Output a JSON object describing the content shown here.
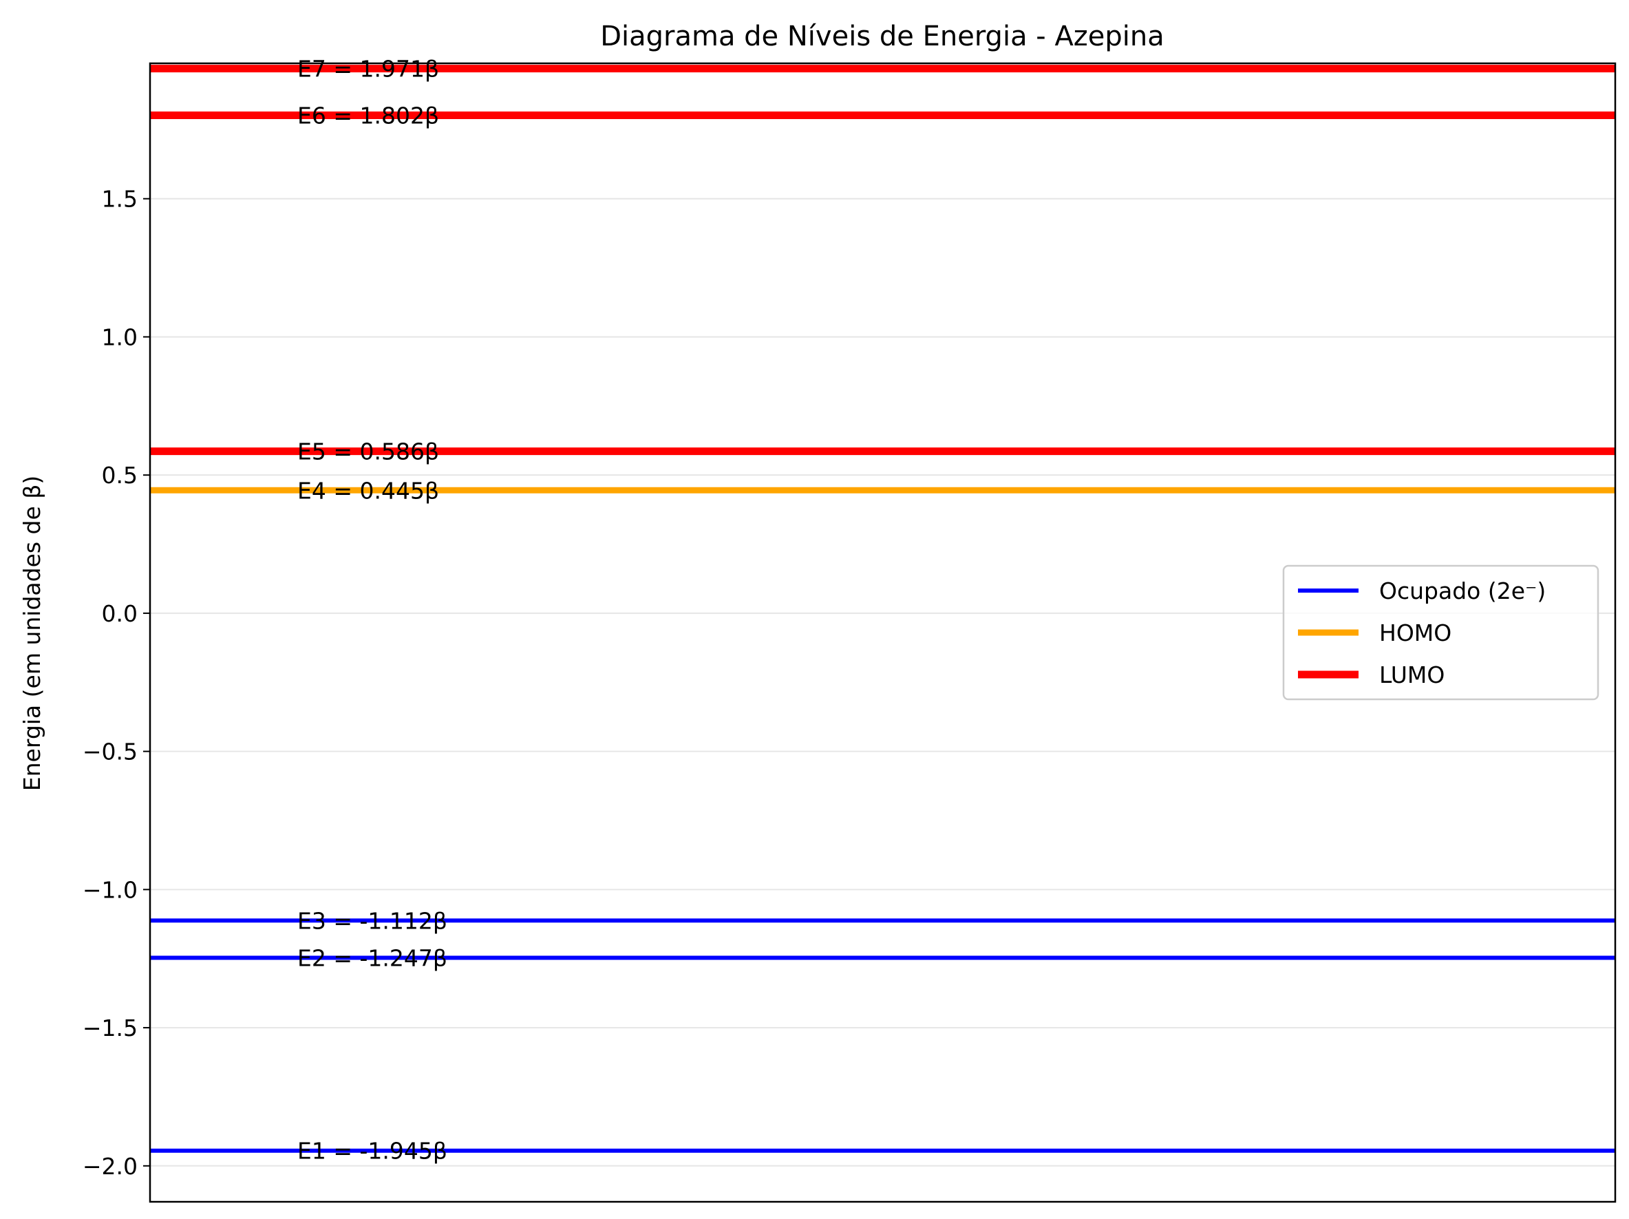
{
  "chart_data": {
    "type": "line",
    "title": "Diagrama de Níveis de Energia - Azepina",
    "xlabel": "",
    "ylabel": "Energia (em unidades de β)",
    "ylim": [
      -2.13,
      1.99
    ],
    "yticks": [
      -2.0,
      -1.5,
      -1.0,
      -0.5,
      0.0,
      0.5,
      1.0,
      1.5
    ],
    "ytick_labels": [
      "−2.0",
      "−1.5",
      "−1.0",
      "−0.5",
      "0.0",
      "0.5",
      "1.0",
      "1.5"
    ],
    "grid": "horizontal",
    "legend_position": "center-right",
    "levels": [
      {
        "label": "E1 = -1.945β",
        "value": -1.945,
        "category": "occupied"
      },
      {
        "label": "E2 = -1.247β",
        "value": -1.247,
        "category": "occupied"
      },
      {
        "label": "E3 = -1.112β",
        "value": -1.112,
        "category": "occupied"
      },
      {
        "label": "E4 = 0.445β",
        "value": 0.445,
        "category": "homo"
      },
      {
        "label": "E5 = 0.586β",
        "value": 0.586,
        "category": "lumo"
      },
      {
        "label": "E6 = 1.802β",
        "value": 1.802,
        "category": "lumo"
      },
      {
        "label": "E7 = 1.971β",
        "value": 1.971,
        "category": "lumo"
      }
    ],
    "legend": [
      {
        "label": "Ocupado (2e⁻)",
        "category": "occupied",
        "color": "#0000ff"
      },
      {
        "label": "HOMO",
        "category": "homo",
        "color": "#ffa500"
      },
      {
        "label": "LUMO",
        "category": "lumo",
        "color": "#ff0000"
      }
    ]
  }
}
